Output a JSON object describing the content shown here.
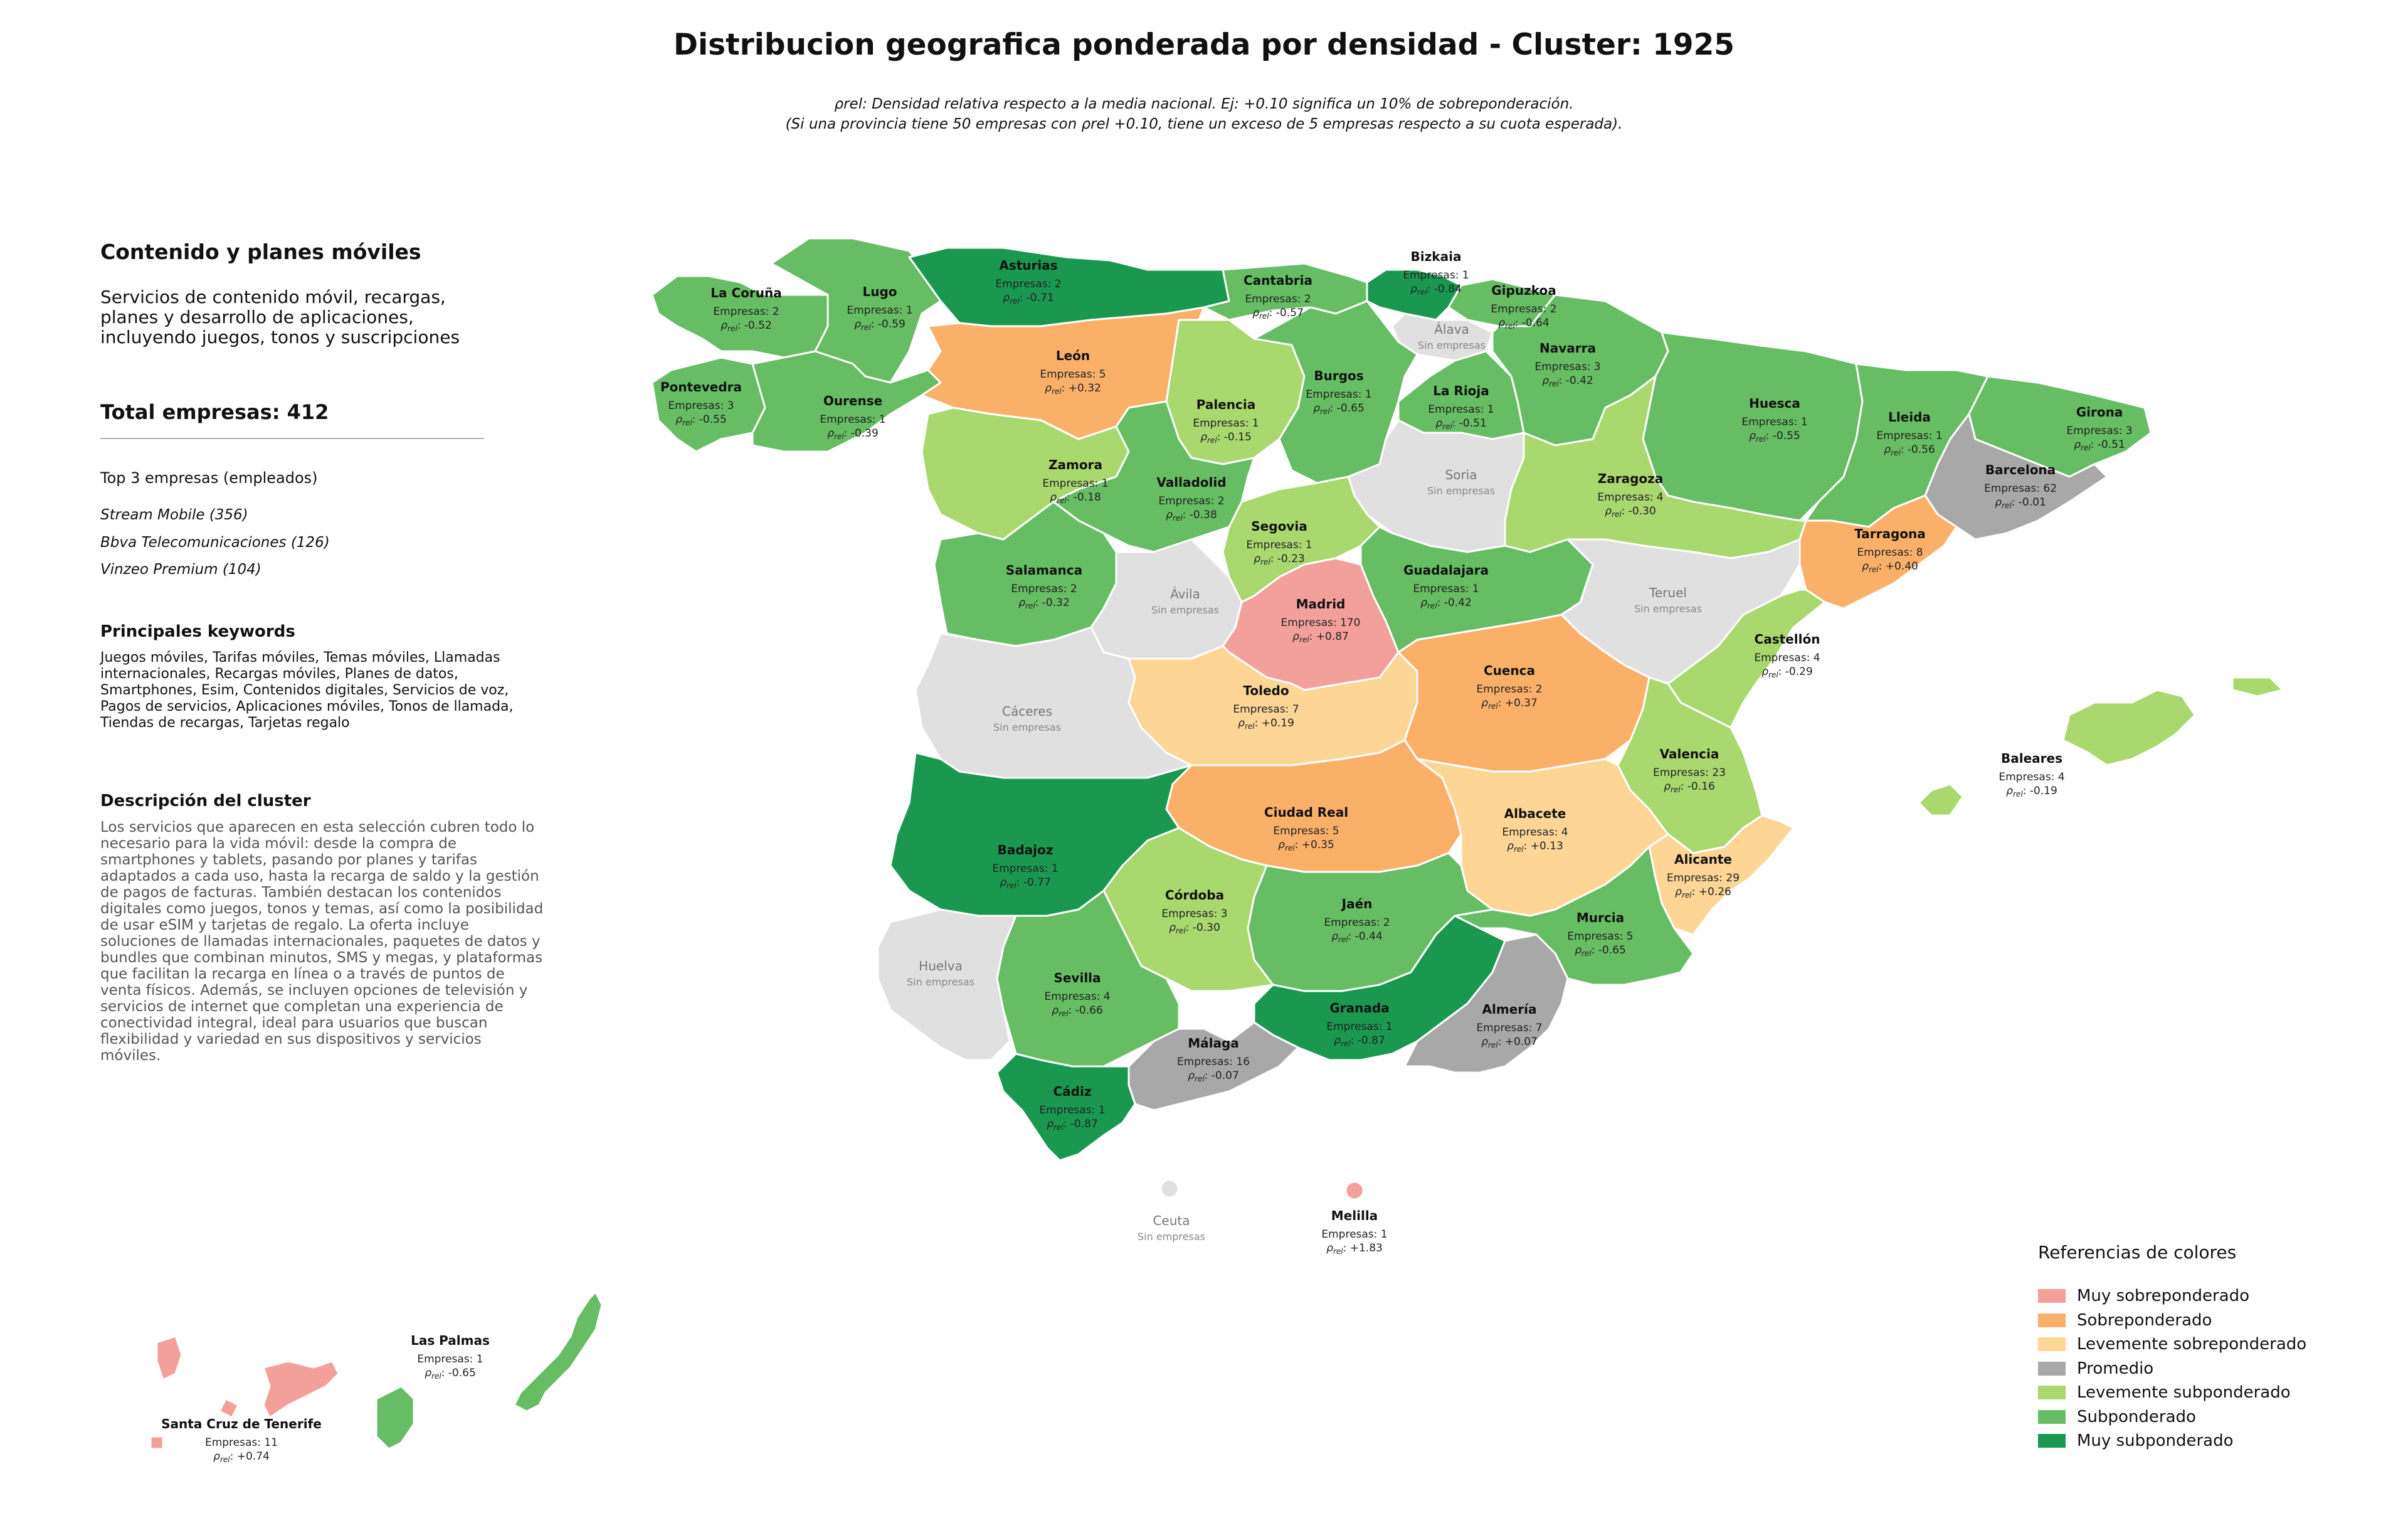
{
  "title": "Distribucion geografica ponderada por densidad - Cluster: 1925",
  "subtitle": {
    "line1": "ρrel: Densidad relativa respecto a la media nacional. Ej: +0.10 significa un 10% de sobreponderación.",
    "line2": "(Si una provincia tiene 50 empresas con ρrel +0.10, tiene un exceso de 5 empresas respecto a su cuota esperada)."
  },
  "sidebar": {
    "cluster_name": "Contenido y planes móviles",
    "cluster_summary": "Servicios de contenido móvil, recargas, planes y desarrollo de aplicaciones, incluyendo juegos, tonos y suscripciones",
    "total": "Total empresas: 412",
    "top_title": "Top 3 empresas (empleados)",
    "top_companies": [
      "Stream Mobile (356)",
      "Bbva Telecomunicaciones (126)",
      "Vinzeo Premium (104)"
    ],
    "keywords_title": "Principales keywords",
    "keywords": "Juegos móviles, Tarifas móviles, Temas móviles, Llamadas internacionales, Recargas móviles, Planes de datos, Smartphones, Esim, Contenidos digitales, Servicios de voz, Pagos de servicios, Aplicaciones móviles, Tonos de llamada, Tiendas de recargas, Tarjetas regalo",
    "description_title": "Descripción del cluster",
    "description": "Los servicios que aparecen en esta selección cubren todo lo necesario para la vida móvil: desde la compra de smartphones y tablets, pasando por planes y tarifas adaptados a cada uso, hasta la recarga de saldo y la gestión de pagos de facturas. También destacan los contenidos digitales como juegos, tonos y temas, así como la posibilidad de usar eSIM y tarjetas de regalo. La oferta incluye soluciones de llamadas internacionales, paquetes de datos y bundles que combinan minutos, SMS y megas, y plataformas que facilitan la recarga en línea o a través de puntos de venta físicos. Además, se incluyen opciones de televisión y servicios de internet que completan una experiencia de conectividad integral, ideal para usuarios que buscan flexibilidad y variedad en sus dispositivos y servicios móviles."
  },
  "legend": {
    "title": "Referencias de colores",
    "items": [
      {
        "label": "Muy sobreponderado",
        "color": "#f4a09a"
      },
      {
        "label": "Sobreponderado",
        "color": "#fbb06a"
      },
      {
        "label": "Levemente sobreponderado",
        "color": "#fdd696"
      },
      {
        "label": "Promedio",
        "color": "#a8a8a8"
      },
      {
        "label": "Levemente subponderado",
        "color": "#a9d86e"
      },
      {
        "label": "Subponderado",
        "color": "#66bd63"
      },
      {
        "label": "Muy subponderado",
        "color": "#1a9850"
      }
    ]
  },
  "no_data_color": "#e0e0e0",
  "no_data_label": "Sin empresas",
  "provinces": [
    {
      "name": "La Coruña",
      "count": "Empresas: 2",
      "rho": "-0.52",
      "category": 5
    },
    {
      "name": "Lugo",
      "count": "Empresas: 1",
      "rho": "-0.59",
      "category": 5
    },
    {
      "name": "Asturias",
      "count": "Empresas: 2",
      "rho": "-0.71",
      "category": 6
    },
    {
      "name": "Cantabria",
      "count": "Empresas: 2",
      "rho": "-0.57",
      "category": 5
    },
    {
      "name": "Bizkaia",
      "count": "Empresas: 1",
      "rho": "-0.84",
      "category": 6
    },
    {
      "name": "Gipuzkoa",
      "count": "Empresas: 2",
      "rho": "-0.64",
      "category": 5
    },
    {
      "name": "Álava",
      "count": "",
      "rho": "",
      "category": -1
    },
    {
      "name": "Navarra",
      "count": "Empresas: 3",
      "rho": "-0.42",
      "category": 5
    },
    {
      "name": "León",
      "count": "Empresas: 5",
      "rho": "+0.32",
      "category": 1
    },
    {
      "name": "Pontevedra",
      "count": "Empresas: 3",
      "rho": "-0.55",
      "category": 5
    },
    {
      "name": "Ourense",
      "count": "Empresas: 1",
      "rho": "-0.39",
      "category": 5
    },
    {
      "name": "Palencia",
      "count": "Empresas: 1",
      "rho": "-0.15",
      "category": 4
    },
    {
      "name": "Burgos",
      "count": "Empresas: 1",
      "rho": "-0.65",
      "category": 5
    },
    {
      "name": "La Rioja",
      "count": "Empresas: 1",
      "rho": "-0.51",
      "category": 5
    },
    {
      "name": "Huesca",
      "count": "Empresas: 1",
      "rho": "-0.55",
      "category": 5
    },
    {
      "name": "Lleida",
      "count": "Empresas: 1",
      "rho": "-0.56",
      "category": 5
    },
    {
      "name": "Girona",
      "count": "Empresas: 3",
      "rho": "-0.51",
      "category": 5
    },
    {
      "name": "Barcelona",
      "count": "Empresas: 62",
      "rho": "-0.01",
      "category": 3
    },
    {
      "name": "Zamora",
      "count": "Empresas: 1",
      "rho": "-0.18",
      "category": 4
    },
    {
      "name": "Valladolid",
      "count": "Empresas: 2",
      "rho": "-0.38",
      "category": 5
    },
    {
      "name": "Soria",
      "count": "",
      "rho": "",
      "category": -1
    },
    {
      "name": "Zaragoza",
      "count": "Empresas: 4",
      "rho": "-0.30",
      "category": 4
    },
    {
      "name": "Tarragona",
      "count": "Empresas: 8",
      "rho": "+0.40",
      "category": 1
    },
    {
      "name": "Segovia",
      "count": "Empresas: 1",
      "rho": "-0.23",
      "category": 4
    },
    {
      "name": "Salamanca",
      "count": "Empresas: 2",
      "rho": "-0.32",
      "category": 5
    },
    {
      "name": "Ávila",
      "count": "",
      "rho": "",
      "category": -1
    },
    {
      "name": "Madrid",
      "count": "Empresas: 170",
      "rho": "+0.87",
      "category": 0
    },
    {
      "name": "Guadalajara",
      "count": "Empresas: 1",
      "rho": "-0.42",
      "category": 5
    },
    {
      "name": "Teruel",
      "count": "",
      "rho": "",
      "category": -1
    },
    {
      "name": "Castellón",
      "count": "Empresas: 4",
      "rho": "-0.29",
      "category": 4
    },
    {
      "name": "Cáceres",
      "count": "",
      "rho": "",
      "category": -1
    },
    {
      "name": "Toledo",
      "count": "Empresas: 7",
      "rho": "+0.19",
      "category": 2
    },
    {
      "name": "Cuenca",
      "count": "Empresas: 2",
      "rho": "+0.37",
      "category": 1
    },
    {
      "name": "Valencia",
      "count": "Empresas: 23",
      "rho": "-0.16",
      "category": 4
    },
    {
      "name": "Baleares",
      "count": "Empresas: 4",
      "rho": "-0.19",
      "category": 4
    },
    {
      "name": "Ciudad Real",
      "count": "Empresas: 5",
      "rho": "+0.35",
      "category": 1
    },
    {
      "name": "Albacete",
      "count": "Empresas: 4",
      "rho": "+0.13",
      "category": 2
    },
    {
      "name": "Badajoz",
      "count": "Empresas: 1",
      "rho": "-0.77",
      "category": 6
    },
    {
      "name": "Alicante",
      "count": "Empresas: 29",
      "rho": "+0.26",
      "category": 2
    },
    {
      "name": "Córdoba",
      "count": "Empresas: 3",
      "rho": "-0.30",
      "category": 4
    },
    {
      "name": "Jaén",
      "count": "Empresas: 2",
      "rho": "-0.44",
      "category": 5
    },
    {
      "name": "Murcia",
      "count": "Empresas: 5",
      "rho": "-0.65",
      "category": 5
    },
    {
      "name": "Huelva",
      "count": "",
      "rho": "",
      "category": -1
    },
    {
      "name": "Sevilla",
      "count": "Empresas: 4",
      "rho": "-0.66",
      "category": 5
    },
    {
      "name": "Granada",
      "count": "Empresas: 1",
      "rho": "-0.87",
      "category": 6
    },
    {
      "name": "Almería",
      "count": "Empresas: 7",
      "rho": "+0.07",
      "category": 3
    },
    {
      "name": "Málaga",
      "count": "Empresas: 16",
      "rho": "-0.07",
      "category": 3
    },
    {
      "name": "Cádiz",
      "count": "Empresas: 1",
      "rho": "-0.87",
      "category": 6
    },
    {
      "name": "Ceuta",
      "count": "",
      "rho": "",
      "category": -1
    },
    {
      "name": "Melilla",
      "count": "Empresas: 1",
      "rho": "+1.83",
      "category": 0
    },
    {
      "name": "Las Palmas",
      "count": "Empresas: 1",
      "rho": "-0.65",
      "category": 5
    },
    {
      "name": "Santa Cruz de Tenerife",
      "count": "Empresas: 11",
      "rho": "+0.74",
      "category": 0
    }
  ]
}
